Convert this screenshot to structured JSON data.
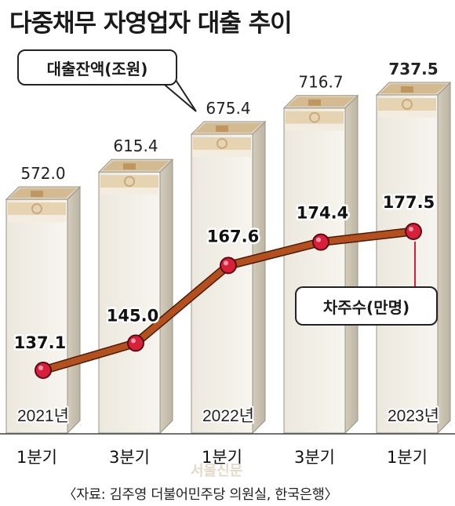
{
  "title": "다중채무 자영업자 대출 추이",
  "chart_data": {
    "type": "bar",
    "categories": [
      "1분기",
      "3분기",
      "1분기",
      "3분기",
      "1분기"
    ],
    "year_labels": [
      "2021년",
      "",
      "2022년",
      "",
      "2023년"
    ],
    "series": [
      {
        "name": "대출잔액(조원)",
        "type": "bar",
        "values": [
          572.0,
          615.4,
          675.4,
          716.7,
          737.5
        ],
        "labels": [
          "572.0",
          "615.4",
          "675.4",
          "716.7",
          "737.5"
        ]
      },
      {
        "name": "차주수(만명)",
        "type": "line",
        "values": [
          137.1,
          145.0,
          167.6,
          174.4,
          177.5
        ],
        "labels": [
          "137.1",
          "145.0",
          "167.6",
          "174.4",
          "177.5"
        ]
      }
    ],
    "legend": {
      "bar": "대출잔액(조원)",
      "line": "차주수(만명)"
    },
    "colors": {
      "bar_front": "#f0ede4",
      "bar_side": "#cfc8b8",
      "bar_top": "#ddd6c4",
      "money_tan": "#c9ab7a",
      "line": "#b4501e",
      "marker": "#d8203a"
    }
  },
  "source": "〈자료: 김주영 더불어민주당 의원실, 한국은행〉",
  "watermark": "서울신문"
}
